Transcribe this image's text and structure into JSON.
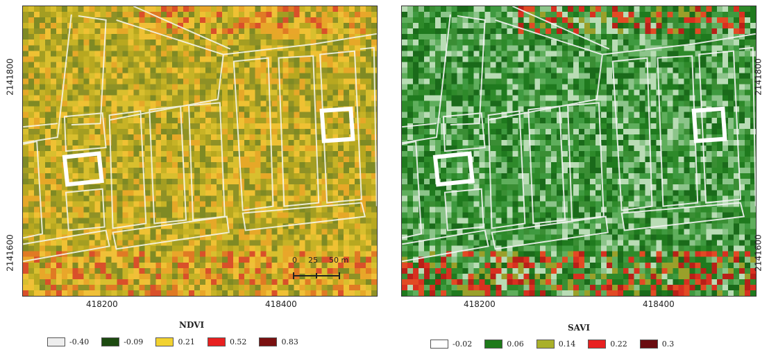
{
  "maps": [
    {
      "id": "ndvi",
      "x_ticks": [
        "418200",
        "418400"
      ],
      "y_ticks": [
        "2141800",
        "2141600"
      ],
      "legend_title": "NDVI",
      "legend": [
        {
          "label": "-0.40",
          "color": "#eeeeee"
        },
        {
          "label": "-0.09",
          "color": "#1c4a10"
        },
        {
          "label": "0.21",
          "color": "#f2d230"
        },
        {
          "label": "0.52",
          "color": "#e82020"
        },
        {
          "label": "0.83",
          "color": "#7a1010"
        }
      ],
      "scale_bar": {
        "labels": [
          "0",
          "25",
          "50 m"
        ]
      }
    },
    {
      "id": "savi",
      "x_ticks": [
        "418200",
        "418400"
      ],
      "y_ticks": [
        "2141800",
        "2141600"
      ],
      "legend_title": "SAVI",
      "legend": [
        {
          "label": "-0.02",
          "color": "#ffffff"
        },
        {
          "label": "0.06",
          "color": "#1e7a1a"
        },
        {
          "label": "0.14",
          "color": "#a9b02a"
        },
        {
          "label": "0.22",
          "color": "#e82020"
        },
        {
          "label": "0.3",
          "color": "#6a0c10"
        }
      ]
    }
  ],
  "palettes": {
    "ndvi": [
      "#b8a820",
      "#a49e22",
      "#8f9126",
      "#c7b326",
      "#d9bf2e",
      "#e6a828",
      "#efc133",
      "#7f8a24"
    ],
    "savi": [
      "#1f7a1e",
      "#2e8a2a",
      "#3f9a40",
      "#5fae5c",
      "#8cc48a",
      "#b9dcb5",
      "#1a6a1a",
      "#3a8e34"
    ]
  }
}
